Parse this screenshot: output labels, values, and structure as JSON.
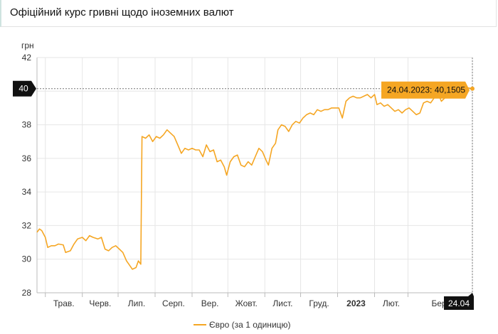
{
  "header": {
    "title": "Офіційний курс гривні щодо іноземних валют"
  },
  "chart_data": {
    "type": "line",
    "ylabel": "грн",
    "ylim": [
      28,
      42
    ],
    "yticks": [
      28,
      30,
      32,
      34,
      36,
      38,
      40,
      42
    ],
    "xlim": [
      "2022-04-24",
      "2023-04-24"
    ],
    "xticks": [
      {
        "date": "2022-05-01",
        "label": "Трав.",
        "bold": false
      },
      {
        "date": "2022-06-01",
        "label": "Черв.",
        "bold": false
      },
      {
        "date": "2022-07-01",
        "label": "Лип.",
        "bold": false
      },
      {
        "date": "2022-08-01",
        "label": "Серп.",
        "bold": false
      },
      {
        "date": "2022-09-01",
        "label": "Вер.",
        "bold": false
      },
      {
        "date": "2022-10-01",
        "label": "Жовт.",
        "bold": false
      },
      {
        "date": "2022-11-01",
        "label": "Лист.",
        "bold": false
      },
      {
        "date": "2022-12-01",
        "label": "Груд.",
        "bold": false
      },
      {
        "date": "2023-01-01",
        "label": "2023",
        "bold": true
      },
      {
        "date": "2023-02-01",
        "label": "Лют.",
        "bold": false
      },
      {
        "date": "2023-03-01",
        "label": "Бер.",
        "bold": false
      }
    ],
    "grid": true,
    "legend_position": "bottom",
    "series": [
      {
        "name": "Євро (за 1 одиницю)",
        "color": "#f5a623",
        "points": [
          [
            "2022-04-24",
            31.6
          ],
          [
            "2022-04-26",
            31.8
          ],
          [
            "2022-04-28",
            31.7
          ],
          [
            "2022-05-01",
            31.3
          ],
          [
            "2022-05-03",
            30.7
          ],
          [
            "2022-05-06",
            30.8
          ],
          [
            "2022-05-09",
            30.8
          ],
          [
            "2022-05-12",
            30.9
          ],
          [
            "2022-05-16",
            30.85
          ],
          [
            "2022-05-18",
            30.4
          ],
          [
            "2022-05-22",
            30.5
          ],
          [
            "2022-05-25",
            30.9
          ],
          [
            "2022-05-28",
            31.2
          ],
          [
            "2022-06-01",
            31.3
          ],
          [
            "2022-06-04",
            31.1
          ],
          [
            "2022-06-07",
            31.4
          ],
          [
            "2022-06-10",
            31.3
          ],
          [
            "2022-06-14",
            31.2
          ],
          [
            "2022-06-17",
            31.3
          ],
          [
            "2022-06-20",
            30.6
          ],
          [
            "2022-06-23",
            30.5
          ],
          [
            "2022-06-26",
            30.7
          ],
          [
            "2022-06-29",
            30.8
          ],
          [
            "2022-07-02",
            30.6
          ],
          [
            "2022-07-05",
            30.4
          ],
          [
            "2022-07-08",
            29.9
          ],
          [
            "2022-07-11",
            29.6
          ],
          [
            "2022-07-13",
            29.4
          ],
          [
            "2022-07-16",
            29.5
          ],
          [
            "2022-07-18",
            29.9
          ],
          [
            "2022-07-20",
            29.7
          ],
          [
            "2022-07-21",
            37.3
          ],
          [
            "2022-07-24",
            37.2
          ],
          [
            "2022-07-27",
            37.4
          ],
          [
            "2022-07-30",
            37.0
          ],
          [
            "2022-08-02",
            37.3
          ],
          [
            "2022-08-05",
            37.2
          ],
          [
            "2022-08-08",
            37.4
          ],
          [
            "2022-08-11",
            37.7
          ],
          [
            "2022-08-14",
            37.5
          ],
          [
            "2022-08-17",
            37.3
          ],
          [
            "2022-08-20",
            36.8
          ],
          [
            "2022-08-23",
            36.3
          ],
          [
            "2022-08-26",
            36.6
          ],
          [
            "2022-08-29",
            36.5
          ],
          [
            "2022-09-01",
            36.6
          ],
          [
            "2022-09-04",
            36.5
          ],
          [
            "2022-09-07",
            36.5
          ],
          [
            "2022-09-10",
            36.1
          ],
          [
            "2022-09-13",
            36.8
          ],
          [
            "2022-09-16",
            36.4
          ],
          [
            "2022-09-19",
            36.5
          ],
          [
            "2022-09-22",
            35.8
          ],
          [
            "2022-09-25",
            35.9
          ],
          [
            "2022-09-28",
            35.5
          ],
          [
            "2022-09-30",
            35.0
          ],
          [
            "2022-10-03",
            35.8
          ],
          [
            "2022-10-06",
            36.1
          ],
          [
            "2022-10-09",
            36.2
          ],
          [
            "2022-10-12",
            35.6
          ],
          [
            "2022-10-15",
            35.5
          ],
          [
            "2022-10-18",
            35.8
          ],
          [
            "2022-10-21",
            35.6
          ],
          [
            "2022-10-24",
            36.1
          ],
          [
            "2022-10-27",
            36.6
          ],
          [
            "2022-10-30",
            36.4
          ],
          [
            "2022-11-02",
            35.9
          ],
          [
            "2022-11-04",
            35.6
          ],
          [
            "2022-11-07",
            36.6
          ],
          [
            "2022-11-10",
            36.9
          ],
          [
            "2022-11-12",
            37.7
          ],
          [
            "2022-11-15",
            38.0
          ],
          [
            "2022-11-18",
            37.9
          ],
          [
            "2022-11-21",
            37.6
          ],
          [
            "2022-11-24",
            38.0
          ],
          [
            "2022-11-27",
            38.2
          ],
          [
            "2022-11-30",
            38.1
          ],
          [
            "2022-12-03",
            38.4
          ],
          [
            "2022-12-06",
            38.6
          ],
          [
            "2022-12-09",
            38.7
          ],
          [
            "2022-12-12",
            38.6
          ],
          [
            "2022-12-15",
            38.9
          ],
          [
            "2022-12-18",
            38.8
          ],
          [
            "2022-12-21",
            38.9
          ],
          [
            "2022-12-24",
            38.9
          ],
          [
            "2022-12-27",
            39.0
          ],
          [
            "2022-12-30",
            39.0
          ],
          [
            "2023-01-02",
            39.0
          ],
          [
            "2023-01-05",
            38.4
          ],
          [
            "2023-01-08",
            39.4
          ],
          [
            "2023-01-11",
            39.6
          ],
          [
            "2023-01-14",
            39.7
          ],
          [
            "2023-01-17",
            39.6
          ],
          [
            "2023-01-20",
            39.6
          ],
          [
            "2023-01-23",
            39.7
          ],
          [
            "2023-01-26",
            39.8
          ],
          [
            "2023-01-29",
            39.6
          ],
          [
            "2023-02-01",
            39.8
          ],
          [
            "2023-02-03",
            39.2
          ],
          [
            "2023-02-06",
            39.3
          ],
          [
            "2023-02-09",
            39.1
          ],
          [
            "2023-02-12",
            39.2
          ],
          [
            "2023-02-15",
            39.0
          ],
          [
            "2023-02-18",
            38.8
          ],
          [
            "2023-02-21",
            38.9
          ],
          [
            "2023-02-24",
            38.7
          ],
          [
            "2023-02-27",
            38.9
          ],
          [
            "2023-03-02",
            39.0
          ],
          [
            "2023-03-05",
            38.8
          ],
          [
            "2023-03-08",
            38.6
          ],
          [
            "2023-03-11",
            38.7
          ],
          [
            "2023-03-14",
            39.3
          ],
          [
            "2023-03-17",
            39.4
          ],
          [
            "2023-03-20",
            39.3
          ],
          [
            "2023-03-23",
            39.6
          ],
          [
            "2023-03-26",
            39.9
          ],
          [
            "2023-03-29",
            39.4
          ],
          [
            "2023-04-01",
            39.6
          ],
          [
            "2023-04-04",
            39.8
          ],
          [
            "2023-04-07",
            39.9
          ],
          [
            "2023-04-10",
            40.1
          ],
          [
            "2023-04-13",
            40.0
          ],
          [
            "2023-04-17",
            40.2
          ],
          [
            "2023-04-20",
            40.2
          ],
          [
            "2023-04-24",
            40.1505
          ]
        ]
      }
    ],
    "crosshair": {
      "x_label": "24.04",
      "y_label": "40",
      "tooltip": "24.04.2023: 40,1505"
    }
  }
}
